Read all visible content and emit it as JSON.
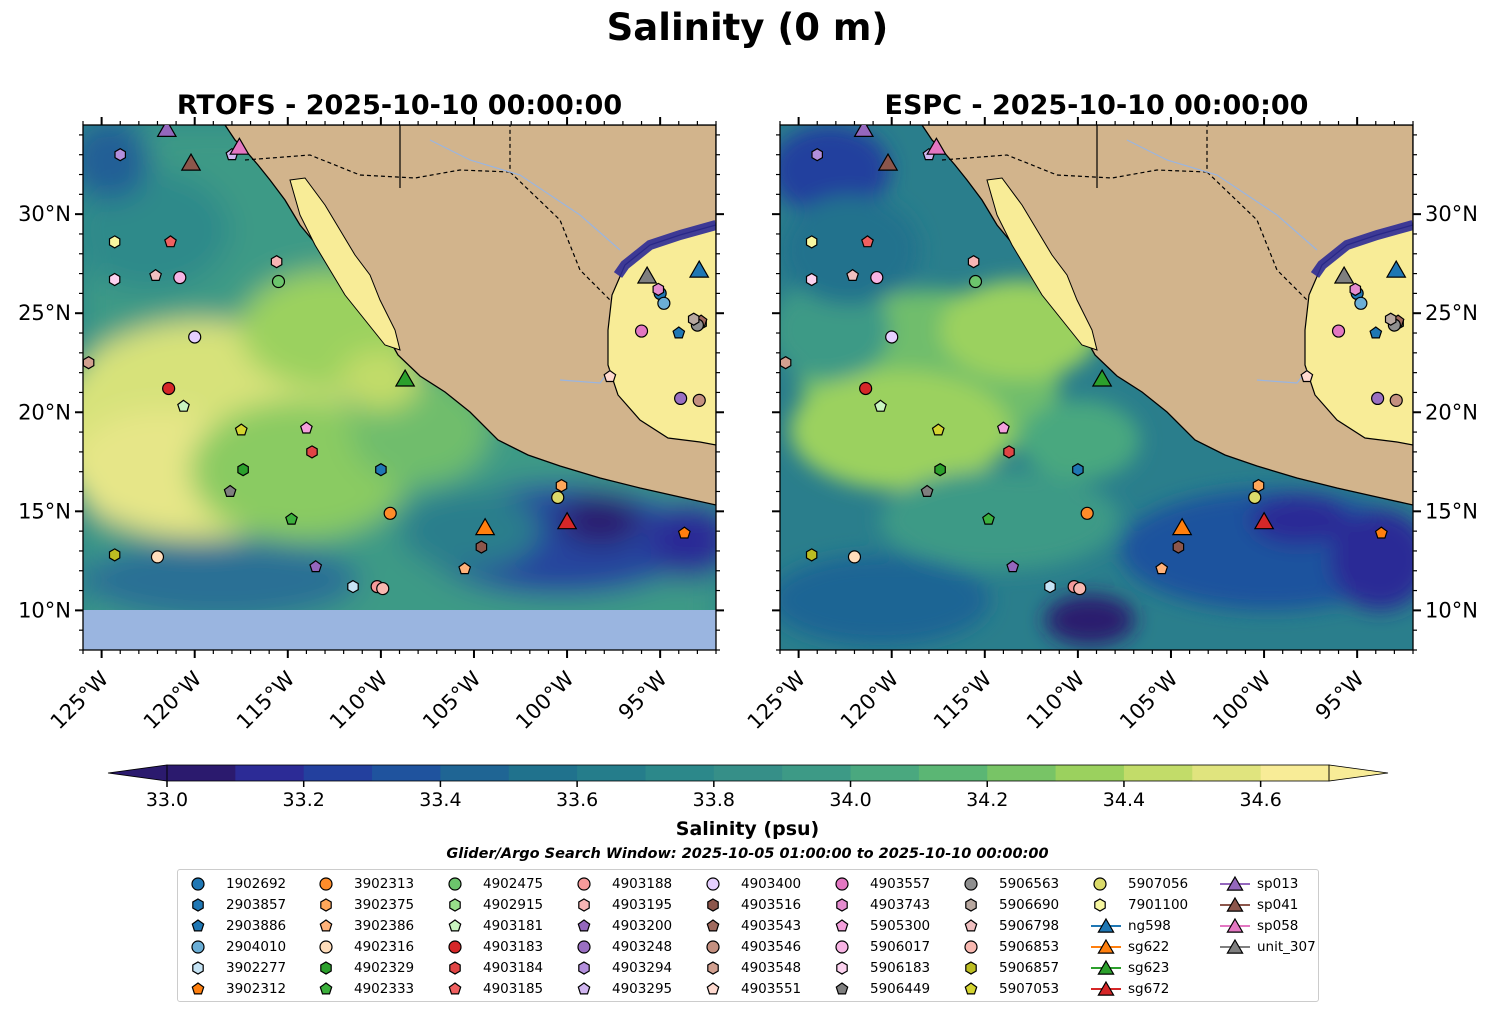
{
  "figure": {
    "suptitle": "Salinity (0 m)",
    "panels": [
      {
        "title": "RTOFS - 2025-10-10 00:00:00",
        "model": "RTOFS"
      },
      {
        "title": "ESPC - 2025-10-10 00:00:00",
        "model": "ESPC"
      }
    ],
    "colorbar": {
      "label": "Salinity (psu)",
      "ticks": [
        "33.0",
        "33.2",
        "33.4",
        "33.6",
        "33.8",
        "34.0",
        "34.2",
        "34.4",
        "34.6"
      ],
      "colors": [
        "#2b1a6e",
        "#2c2b96",
        "#23409e",
        "#1f539e",
        "#1f6594",
        "#20728d",
        "#257d8b",
        "#2c888a",
        "#368f88",
        "#3d9a86",
        "#4aa87f",
        "#5bb674",
        "#78c466",
        "#9bd15e",
        "#c2dc69",
        "#e0e47e",
        "#f8ec97"
      ]
    },
    "window_label": "Glider/Argo Search Window: 2025-10-05 01:00:00 to 2025-10-10 00:00:00"
  },
  "chart_data": {
    "type": "map-contour",
    "variable": "Salinity",
    "depth_m": 0,
    "units": "psu",
    "vmin": 33.0,
    "vmax": 34.7,
    "lon_range": [
      -126,
      -92
    ],
    "lat_range": [
      8,
      34.5
    ],
    "xticks": [
      -125,
      -120,
      -115,
      -110,
      -105,
      -100,
      -95
    ],
    "xtick_labels": [
      "125°W",
      "120°W",
      "115°W",
      "110°W",
      "105°W",
      "100°W",
      "95°W"
    ],
    "yticks": [
      10,
      15,
      20,
      25,
      30
    ],
    "ytick_labels": [
      "10°N",
      "15°N",
      "20°N",
      "25°N",
      "30°N"
    ],
    "argo_floats": [
      {
        "id": "1902692",
        "lon": -95,
        "lat": 26,
        "color": "#1f77b4",
        "marker": "circle"
      },
      {
        "id": "2903857",
        "lon": -110,
        "lat": 17.1,
        "color": "#1f77b4",
        "marker": "hexagon"
      },
      {
        "id": "2903886",
        "lon": -94,
        "lat": 24,
        "color": "#1f77b4",
        "marker": "pentagon"
      },
      {
        "id": "2904010",
        "lon": -94.8,
        "lat": 25.5,
        "color": "#6baed6",
        "marker": "circle"
      },
      {
        "id": "3902277",
        "lon": -111.5,
        "lat": 11.2,
        "color": "#c6e4f5",
        "marker": "hexagon"
      },
      {
        "id": "3902312",
        "lon": -93.7,
        "lat": 13.9,
        "color": "#ff7f0e",
        "marker": "pentagon"
      },
      {
        "id": "3902313",
        "lon": -109.5,
        "lat": 14.9,
        "color": "#ff8c2a",
        "marker": "circle"
      },
      {
        "id": "3902375",
        "lon": -100.3,
        "lat": 16.3,
        "color": "#ffa75a",
        "marker": "hexagon"
      },
      {
        "id": "3902386",
        "lon": -105.5,
        "lat": 12.1,
        "color": "#ffb27a",
        "marker": "pentagon"
      },
      {
        "id": "4902316",
        "lon": -122,
        "lat": 12.7,
        "color": "#ffddbb",
        "marker": "circle"
      },
      {
        "id": "4902329",
        "lon": -117.4,
        "lat": 17.1,
        "color": "#2ca02c",
        "marker": "hexagon"
      },
      {
        "id": "4902333",
        "lon": -114.8,
        "lat": 14.6,
        "color": "#3cb03c",
        "marker": "pentagon"
      },
      {
        "id": "4902475",
        "lon": -115.5,
        "lat": 26.6,
        "color": "#6cc46c",
        "marker": "circle"
      },
      {
        "id": "4902915",
        "lon": -92.8,
        "lat": 24.5,
        "color": "#98df8a",
        "marker": "hexagon"
      },
      {
        "id": "4903181",
        "lon": -120.6,
        "lat": 20.3,
        "color": "#c9f5c0",
        "marker": "pentagon"
      },
      {
        "id": "4903183",
        "lon": -121.4,
        "lat": 21.2,
        "color": "#d62728",
        "marker": "circle"
      },
      {
        "id": "4903184",
        "lon": -113.7,
        "lat": 18,
        "color": "#e04545",
        "marker": "hexagon"
      },
      {
        "id": "4903185",
        "lon": -121.3,
        "lat": 28.6,
        "color": "#f06060",
        "marker": "pentagon"
      },
      {
        "id": "4903188",
        "lon": -110.2,
        "lat": 11.2,
        "color": "#f59a9a",
        "marker": "circle"
      },
      {
        "id": "4903195",
        "lon": -115.6,
        "lat": 27.6,
        "color": "#f7b5b5",
        "marker": "hexagon"
      },
      {
        "id": "4903200",
        "lon": -113.5,
        "lat": 12.2,
        "color": "#9467bd",
        "marker": "pentagon"
      },
      {
        "id": "4903248",
        "lon": -93.9,
        "lat": 20.7,
        "color": "#9a6fc2",
        "marker": "circle"
      },
      {
        "id": "4903294",
        "lon": -124,
        "lat": 33,
        "color": "#b38fdc",
        "marker": "hexagon"
      },
      {
        "id": "4903295",
        "lon": -118,
        "lat": 33,
        "color": "#d1b6f0",
        "marker": "pentagon"
      },
      {
        "id": "4903400",
        "lon": -120,
        "lat": 23.8,
        "color": "#e6d0ff",
        "marker": "circle"
      },
      {
        "id": "4903516",
        "lon": -104.6,
        "lat": 13.2,
        "color": "#8c564b",
        "marker": "hexagon"
      },
      {
        "id": "4903543",
        "lon": -92.8,
        "lat": 24.6,
        "color": "#a06a5e",
        "marker": "pentagon"
      },
      {
        "id": "4903546",
        "lon": -92.9,
        "lat": 20.6,
        "color": "#c49080",
        "marker": "circle"
      },
      {
        "id": "4903548",
        "lon": -125.7,
        "lat": 22.5,
        "color": "#d2a090",
        "marker": "hexagon"
      },
      {
        "id": "4903551",
        "lon": -97.7,
        "lat": 21.8,
        "color": "#ffdad0",
        "marker": "pentagon"
      },
      {
        "id": "4903557",
        "lon": -96,
        "lat": 24.1,
        "color": "#e377c2",
        "marker": "circle"
      },
      {
        "id": "4903743",
        "lon": -95.1,
        "lat": 26.2,
        "color": "#e58ccf",
        "marker": "hexagon"
      },
      {
        "id": "5905300",
        "lon": -114,
        "lat": 19.2,
        "color": "#f4a0dc",
        "marker": "pentagon"
      },
      {
        "id": "5906017",
        "lon": -120.8,
        "lat": 26.8,
        "color": "#f8b4e4",
        "marker": "circle"
      },
      {
        "id": "5906183",
        "lon": -124.3,
        "lat": 26.7,
        "color": "#fcd2ef",
        "marker": "hexagon"
      },
      {
        "id": "5906449",
        "lon": -118.1,
        "lat": 16,
        "color": "#7f7f7f",
        "marker": "pentagon"
      },
      {
        "id": "5906563",
        "lon": -93,
        "lat": 24.4,
        "color": "#8f8f8f",
        "marker": "circle"
      },
      {
        "id": "5906690",
        "lon": -93.2,
        "lat": 24.7,
        "color": "#b8a8a0",
        "marker": "hexagon"
      },
      {
        "id": "5906798",
        "lon": -122.1,
        "lat": 26.9,
        "color": "#f0c0c0",
        "marker": "pentagon"
      },
      {
        "id": "5906853",
        "lon": -109.9,
        "lat": 11.1,
        "color": "#f8b8b0",
        "marker": "circle"
      },
      {
        "id": "5906857",
        "lon": -124.3,
        "lat": 12.8,
        "color": "#bcbd22",
        "marker": "hexagon"
      },
      {
        "id": "5907053",
        "lon": -117.5,
        "lat": 19.1,
        "color": "#d4d430",
        "marker": "pentagon"
      },
      {
        "id": "5907056",
        "lon": -100.5,
        "lat": 15.7,
        "color": "#dbdb6a",
        "marker": "circle"
      },
      {
        "id": "7901100",
        "lon": -124.3,
        "lat": 28.6,
        "color": "#f7f7a0",
        "marker": "hexagon"
      }
    ],
    "gliders": [
      {
        "id": "ng598",
        "lon": -92.9,
        "lat": 27.2,
        "color": "#1f77b4"
      },
      {
        "id": "sg622",
        "lon": -104.4,
        "lat": 14.2,
        "color": "#ff7f0e"
      },
      {
        "id": "sg623",
        "lon": -108.7,
        "lat": 21.7,
        "color": "#2ca02c"
      },
      {
        "id": "sg672",
        "lon": -100,
        "lat": 14.5,
        "color": "#d62728"
      },
      {
        "id": "sp013",
        "lon": -121.5,
        "lat": 34.3,
        "color": "#9467bd"
      },
      {
        "id": "sp041",
        "lon": -120.2,
        "lat": 32.6,
        "color": "#8c564b"
      },
      {
        "id": "sp058",
        "lon": -117.6,
        "lat": 33.4,
        "color": "#e377c2"
      },
      {
        "id": "unit_307",
        "lon": -95.7,
        "lat": 26.9,
        "color": "#7f7f7f"
      }
    ]
  }
}
